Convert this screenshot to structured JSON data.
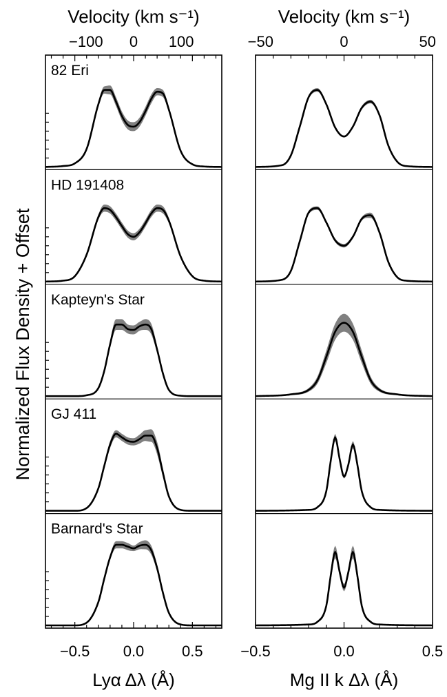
{
  "chart_data": [
    {
      "type": "line",
      "panel": "left",
      "xlabel": "Lyα Δλ (Å)",
      "top_axis_label": "Velocity (km s⁻¹)",
      "xlim": [
        -0.75,
        0.75
      ],
      "xticks": [
        -0.5,
        0.0,
        0.5
      ],
      "xtick_labels": [
        "−0.5",
        "0.0",
        "0.5"
      ],
      "top_xticks": [
        -100,
        0,
        100
      ],
      "top_xtick_labels": [
        "−100",
        "0",
        "100"
      ],
      "top_axis_unit_per_A": 246.7,
      "ylabel": "Normalized Flux Density + Offset",
      "grid": false,
      "band_color": "#808080",
      "line_color": "#000000",
      "series": [
        {
          "name": "82 Eri",
          "x": [
            -0.75,
            -0.6,
            -0.5,
            -0.4,
            -0.3,
            -0.25,
            -0.2,
            -0.15,
            -0.1,
            -0.05,
            0.0,
            0.05,
            0.1,
            0.15,
            0.2,
            0.25,
            0.3,
            0.4,
            0.5,
            0.6,
            0.75
          ],
          "y": [
            0.0,
            0.01,
            0.04,
            0.2,
            0.7,
            0.86,
            0.86,
            0.73,
            0.57,
            0.47,
            0.45,
            0.5,
            0.62,
            0.76,
            0.84,
            0.82,
            0.64,
            0.18,
            0.03,
            0.005,
            0.0
          ],
          "y_err": [
            0,
            0,
            0,
            0.01,
            0.03,
            0.04,
            0.05,
            0.05,
            0.05,
            0.05,
            0.05,
            0.05,
            0.05,
            0.05,
            0.04,
            0.04,
            0.03,
            0.01,
            0,
            0,
            0
          ]
        },
        {
          "name": "HD 191408",
          "x": [
            -0.75,
            -0.6,
            -0.5,
            -0.4,
            -0.3,
            -0.25,
            -0.2,
            -0.15,
            -0.1,
            -0.05,
            0.0,
            0.05,
            0.1,
            0.15,
            0.2,
            0.25,
            0.3,
            0.4,
            0.5,
            0.6,
            0.75
          ],
          "y": [
            0.0,
            0.01,
            0.06,
            0.3,
            0.72,
            0.82,
            0.8,
            0.72,
            0.62,
            0.53,
            0.5,
            0.55,
            0.65,
            0.76,
            0.82,
            0.8,
            0.68,
            0.28,
            0.06,
            0.01,
            0.0
          ],
          "y_err": [
            0,
            0,
            0,
            0.01,
            0.03,
            0.04,
            0.04,
            0.04,
            0.04,
            0.04,
            0.04,
            0.04,
            0.04,
            0.04,
            0.04,
            0.04,
            0.03,
            0.01,
            0,
            0,
            0
          ]
        },
        {
          "name": "Kapteyn's Star",
          "x": [
            -0.75,
            -0.5,
            -0.4,
            -0.3,
            -0.25,
            -0.2,
            -0.15,
            -0.1,
            -0.05,
            0.0,
            0.05,
            0.1,
            0.15,
            0.2,
            0.25,
            0.3,
            0.4,
            0.5,
            0.75
          ],
          "y": [
            0.0,
            0.0,
            0.01,
            0.09,
            0.28,
            0.58,
            0.8,
            0.8,
            0.75,
            0.74,
            0.78,
            0.8,
            0.75,
            0.52,
            0.25,
            0.07,
            0.005,
            0.0,
            0.0
          ],
          "y_err": [
            0,
            0,
            0,
            0.01,
            0.02,
            0.04,
            0.06,
            0.06,
            0.05,
            0.05,
            0.05,
            0.06,
            0.06,
            0.04,
            0.02,
            0.01,
            0,
            0,
            0
          ]
        },
        {
          "name": "GJ 411",
          "x": [
            -0.75,
            -0.5,
            -0.4,
            -0.3,
            -0.25,
            -0.2,
            -0.15,
            -0.1,
            -0.05,
            0.0,
            0.05,
            0.1,
            0.15,
            0.2,
            0.25,
            0.3,
            0.4,
            0.5,
            0.75
          ],
          "y": [
            0.0,
            0.0,
            0.03,
            0.25,
            0.5,
            0.74,
            0.86,
            0.82,
            0.78,
            0.77,
            0.8,
            0.84,
            0.84,
            0.7,
            0.42,
            0.16,
            0.01,
            0.0,
            0.0
          ],
          "y_err": [
            0,
            0,
            0,
            0.02,
            0.03,
            0.04,
            0.04,
            0.04,
            0.04,
            0.04,
            0.05,
            0.06,
            0.07,
            0.07,
            0.05,
            0.02,
            0,
            0,
            0
          ]
        },
        {
          "name": "Barnard's Star",
          "x": [
            -0.75,
            -0.5,
            -0.4,
            -0.3,
            -0.25,
            -0.2,
            -0.15,
            -0.1,
            -0.05,
            0.0,
            0.05,
            0.1,
            0.15,
            0.2,
            0.25,
            0.3,
            0.4,
            0.5,
            0.75
          ],
          "y": [
            0.0,
            0.0,
            0.03,
            0.26,
            0.52,
            0.76,
            0.9,
            0.9,
            0.88,
            0.86,
            0.89,
            0.9,
            0.84,
            0.64,
            0.36,
            0.14,
            0.01,
            0.0,
            0.0
          ],
          "y_err": [
            0,
            0,
            0,
            0.02,
            0.03,
            0.03,
            0.04,
            0.04,
            0.04,
            0.03,
            0.04,
            0.05,
            0.05,
            0.04,
            0.03,
            0.02,
            0,
            0,
            0
          ]
        }
      ]
    },
    {
      "type": "line",
      "panel": "right",
      "xlabel": "Mg II k Δλ (Å)",
      "top_axis_label": "Velocity (km s⁻¹)",
      "xlim": [
        -0.5,
        0.5
      ],
      "xticks": [
        -0.5,
        0.0,
        0.5
      ],
      "xtick_labels": [
        "−0.5",
        "0.0",
        "0.5"
      ],
      "top_xticks": [
        -50,
        0,
        50
      ],
      "top_xtick_labels": [
        "−50",
        "0",
        "50"
      ],
      "top_axis_unit_per_A": 106.0,
      "grid": false,
      "band_color": "#808080",
      "line_color": "#000000",
      "series": [
        {
          "name": "82 Eri",
          "x": [
            -0.5,
            -0.35,
            -0.3,
            -0.25,
            -0.2,
            -0.15,
            -0.1,
            -0.05,
            0.0,
            0.05,
            0.1,
            0.15,
            0.2,
            0.25,
            0.3,
            0.35,
            0.5
          ],
          "y": [
            0.0,
            0.02,
            0.13,
            0.45,
            0.78,
            0.86,
            0.7,
            0.44,
            0.34,
            0.45,
            0.66,
            0.73,
            0.58,
            0.24,
            0.06,
            0.01,
            0.0
          ],
          "y_err": [
            0,
            0,
            0.01,
            0.01,
            0.02,
            0.02,
            0.02,
            0.01,
            0.01,
            0.01,
            0.02,
            0.02,
            0.02,
            0.01,
            0.01,
            0,
            0
          ]
        },
        {
          "name": "HD 191408",
          "x": [
            -0.5,
            -0.35,
            -0.3,
            -0.25,
            -0.2,
            -0.15,
            -0.1,
            -0.05,
            0.0,
            0.05,
            0.1,
            0.15,
            0.2,
            0.25,
            0.3,
            0.35,
            0.5
          ],
          "y": [
            0.0,
            0.02,
            0.12,
            0.45,
            0.77,
            0.82,
            0.66,
            0.46,
            0.4,
            0.5,
            0.7,
            0.74,
            0.55,
            0.22,
            0.05,
            0.01,
            0.0
          ],
          "y_err": [
            0,
            0,
            0.01,
            0.01,
            0.02,
            0.02,
            0.02,
            0.02,
            0.02,
            0.02,
            0.02,
            0.03,
            0.02,
            0.01,
            0.01,
            0,
            0
          ]
        },
        {
          "name": "Kapteyn's Star",
          "x": [
            -0.5,
            -0.3,
            -0.2,
            -0.15,
            -0.1,
            -0.05,
            0.0,
            0.05,
            0.1,
            0.15,
            0.2,
            0.3,
            0.5
          ],
          "y": [
            0.0,
            0.02,
            0.07,
            0.18,
            0.44,
            0.72,
            0.82,
            0.72,
            0.44,
            0.18,
            0.07,
            0.02,
            0.0
          ],
          "y_err": [
            0,
            0.01,
            0.02,
            0.04,
            0.07,
            0.09,
            0.1,
            0.09,
            0.07,
            0.04,
            0.02,
            0.01,
            0
          ]
        },
        {
          "name": "GJ 411",
          "x": [
            -0.5,
            -0.2,
            -0.15,
            -0.1,
            -0.075,
            -0.05,
            -0.025,
            0.0,
            0.025,
            0.05,
            0.075,
            0.1,
            0.15,
            0.2,
            0.5
          ],
          "y": [
            0.0,
            0.01,
            0.04,
            0.22,
            0.56,
            0.82,
            0.58,
            0.38,
            0.52,
            0.74,
            0.52,
            0.22,
            0.04,
            0.01,
            0.0
          ],
          "y_err": [
            0,
            0,
            0.01,
            0.02,
            0.03,
            0.04,
            0.03,
            0.02,
            0.03,
            0.04,
            0.03,
            0.02,
            0.01,
            0,
            0
          ]
        },
        {
          "name": "Barnard's Star",
          "x": [
            -0.5,
            -0.2,
            -0.15,
            -0.1,
            -0.075,
            -0.05,
            -0.025,
            0.0,
            0.025,
            0.05,
            0.075,
            0.1,
            0.15,
            0.2,
            0.5
          ],
          "y": [
            0.0,
            0.01,
            0.04,
            0.22,
            0.56,
            0.82,
            0.6,
            0.42,
            0.6,
            0.82,
            0.56,
            0.22,
            0.04,
            0.01,
            0.0
          ],
          "y_err": [
            0,
            0,
            0.01,
            0.03,
            0.06,
            0.07,
            0.05,
            0.04,
            0.05,
            0.07,
            0.06,
            0.03,
            0.01,
            0,
            0
          ]
        }
      ]
    }
  ]
}
